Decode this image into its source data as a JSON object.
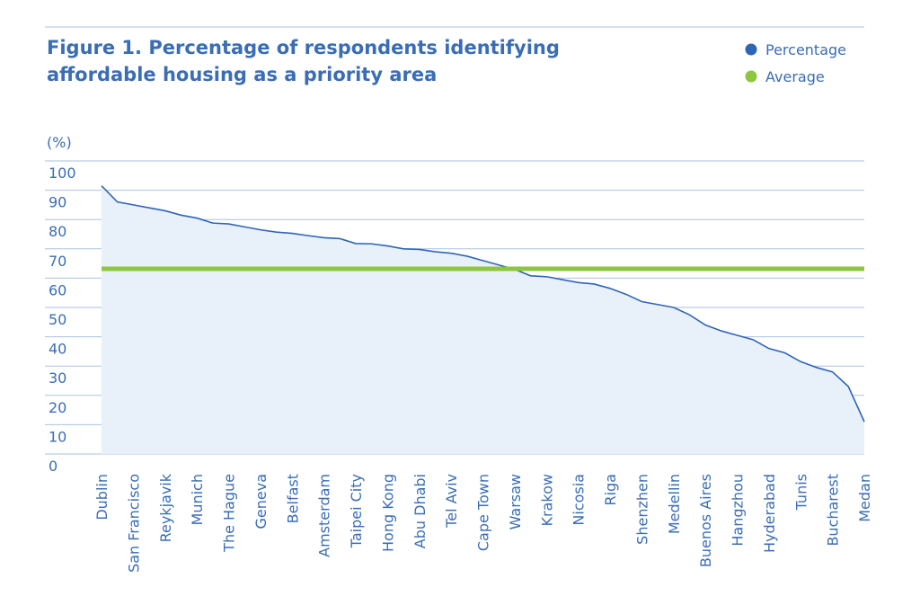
{
  "chart_data": {
    "type": "area",
    "title": "Figure 1. Percentage of respondents identifying affordable housing as a priority area",
    "y_label": "(%)",
    "categories": [
      "Dublin",
      null,
      "San Francisco",
      null,
      "Reykjavik",
      null,
      "Munich",
      null,
      "The Hague",
      null,
      "Geneva",
      null,
      "Belfast",
      null,
      "Amsterdam",
      null,
      "Taipei City",
      null,
      "Hong Kong",
      null,
      "Abu Dhabi",
      null,
      "Tel Aviv",
      null,
      "Cape Town",
      null,
      "Warsaw",
      null,
      "Krakow",
      null,
      "Nicosia",
      null,
      "Riga",
      null,
      "Shenzhen",
      null,
      "Medellin",
      null,
      "Buenos Aires",
      null,
      "Hangzhou",
      null,
      "Hyderabad",
      null,
      "Tunis",
      null,
      "Bucharest",
      null,
      "Medan"
    ],
    "series": [
      {
        "name": "Percentage",
        "color": "#2f65b5",
        "values": [
          91.5,
          86,
          85,
          84,
          83,
          81.5,
          80.5,
          78.8,
          78.5,
          77.5,
          76.5,
          75.7,
          75.3,
          74.5,
          73.8,
          73.5,
          71.8,
          71.7,
          71,
          70,
          69.8,
          69,
          68.5,
          67.5,
          66,
          64.5,
          63,
          60.8,
          60.5,
          59.5,
          58.5,
          58,
          56.5,
          54.5,
          52,
          51,
          50,
          47.5,
          44,
          42,
          40.5,
          39,
          36,
          34.5,
          31.5,
          29.5,
          28,
          23,
          11
        ]
      },
      {
        "name": "Average",
        "color": "#8dc63f",
        "value": 63.2
      }
    ],
    "ylim": [
      0,
      100
    ],
    "yticks": [
      0,
      10,
      20,
      30,
      40,
      50,
      60,
      70,
      80,
      90,
      100
    ],
    "grid": true,
    "legend": "top-right"
  }
}
